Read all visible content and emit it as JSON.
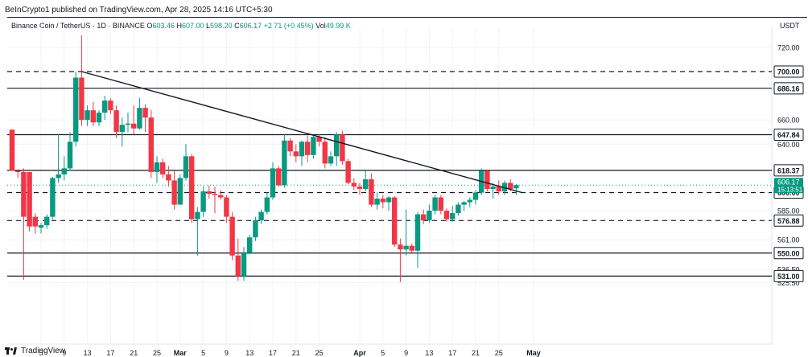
{
  "publisher_line": "BeInCrypto1 published on TradingView.com, Apr 28, 2025 14:16 UTC+5:30",
  "legend": {
    "symbol": "Binance Coin / TetherUS · 1D · BINANCE",
    "open_label": "O",
    "open": "603.46",
    "high_label": "H",
    "high": "607.00",
    "low_label": "L",
    "low": "598.20",
    "close_label": "C",
    "close": "606.17",
    "change": "+2.71 (+0.45%)",
    "volume_label": "Vol",
    "volume": "49.99 K"
  },
  "currency": "USDT",
  "brand": "TradingView",
  "colors": {
    "up": "#089981",
    "down": "#f23645",
    "line": "#131722",
    "grid": "#f0f3fa"
  },
  "chart_data": {
    "type": "candlestick",
    "title": "Binance Coin / TetherUS · 1D · BINANCE",
    "ylim": [
      520,
      735
    ],
    "y_ticks": [
      "720.00",
      "700.00",
      "686.16",
      "660.00",
      "647.84",
      "640.00",
      "618.37",
      "606.17",
      "600.00",
      "585.00",
      "576.88",
      "561.00",
      "550.00",
      "536.50",
      "531.00",
      "525.50"
    ],
    "x_ticks": [
      "5",
      "9",
      "13",
      "17",
      "21",
      "25",
      "Mar",
      "5",
      "9",
      "13",
      "17",
      "21",
      "25",
      "Apr",
      "5",
      "9",
      "13",
      "17",
      "21",
      "25",
      "May"
    ],
    "last_price": {
      "value": 606.17,
      "label": "606.17",
      "countdown": "15:13:51"
    },
    "horizontal_levels": [
      {
        "value": 700.0,
        "label": "700.00",
        "style": "dashed"
      },
      {
        "value": 686.16,
        "label": "686.16",
        "style": "solid"
      },
      {
        "value": 647.84,
        "label": "647.84",
        "style": "solid"
      },
      {
        "value": 618.37,
        "label": "618.37",
        "style": "solid"
      },
      {
        "value": 600.0,
        "label": "600.00",
        "style": "dashed"
      },
      {
        "value": 576.88,
        "label": "576.88",
        "style": "dashed"
      },
      {
        "value": 550.0,
        "label": "550.00",
        "style": "solid"
      },
      {
        "value": 531.0,
        "label": "531.00",
        "style": "solid"
      }
    ],
    "trendline": {
      "from": {
        "date": "Feb 12",
        "value": 700
      },
      "to": {
        "date": "Apr 29",
        "value": 600
      }
    },
    "candles": [
      {
        "date": "Jan 31",
        "open": 652,
        "high": 652,
        "low": 618,
        "close": 618
      },
      {
        "date": "Feb 1",
        "open": 618,
        "high": 618,
        "low": 612,
        "close": 617
      },
      {
        "date": "Feb 2",
        "open": 617,
        "high": 620,
        "low": 528,
        "close": 580
      },
      {
        "date": "Feb 3",
        "open": 617,
        "high": 617,
        "low": 568,
        "close": 572
      },
      {
        "date": "Feb 4",
        "open": 580,
        "high": 583,
        "low": 566,
        "close": 572
      },
      {
        "date": "Feb 5",
        "open": 571,
        "high": 575,
        "low": 566,
        "close": 573
      },
      {
        "date": "Feb 6",
        "open": 573,
        "high": 582,
        "low": 570,
        "close": 580
      },
      {
        "date": "Feb 7",
        "open": 580,
        "high": 613,
        "low": 578,
        "close": 612
      },
      {
        "date": "Feb 8",
        "open": 612,
        "high": 648,
        "low": 608,
        "close": 615
      },
      {
        "date": "Feb 9",
        "open": 615,
        "high": 630,
        "low": 610,
        "close": 620
      },
      {
        "date": "Feb 10",
        "open": 620,
        "high": 650,
        "low": 618,
        "close": 642
      },
      {
        "date": "Feb 11",
        "open": 642,
        "high": 700,
        "low": 638,
        "close": 695
      },
      {
        "date": "Feb 12",
        "open": 695,
        "high": 730,
        "low": 655,
        "close": 660
      },
      {
        "date": "Feb 13",
        "open": 660,
        "high": 672,
        "low": 655,
        "close": 668
      },
      {
        "date": "Feb 14",
        "open": 668,
        "high": 675,
        "low": 655,
        "close": 658
      },
      {
        "date": "Feb 15",
        "open": 658,
        "high": 668,
        "low": 655,
        "close": 666
      },
      {
        "date": "Feb 16",
        "open": 666,
        "high": 680,
        "low": 660,
        "close": 676
      },
      {
        "date": "Feb 17",
        "open": 676,
        "high": 678,
        "low": 665,
        "close": 668
      },
      {
        "date": "Feb 18",
        "open": 668,
        "high": 672,
        "low": 645,
        "close": 650
      },
      {
        "date": "Feb 19",
        "open": 650,
        "high": 662,
        "low": 638,
        "close": 656
      },
      {
        "date": "Feb 20",
        "open": 656,
        "high": 666,
        "low": 650,
        "close": 657
      },
      {
        "date": "Feb 21",
        "open": 657,
        "high": 672,
        "low": 648,
        "close": 653
      },
      {
        "date": "Feb 22",
        "open": 653,
        "high": 678,
        "low": 652,
        "close": 670
      },
      {
        "date": "Feb 23",
        "open": 670,
        "high": 673,
        "low": 650,
        "close": 662
      },
      {
        "date": "Feb 24",
        "open": 662,
        "high": 668,
        "low": 612,
        "close": 617
      },
      {
        "date": "Feb 25",
        "open": 617,
        "high": 630,
        "low": 608,
        "close": 625
      },
      {
        "date": "Feb 26",
        "open": 625,
        "high": 628,
        "low": 612,
        "close": 615
      },
      {
        "date": "Feb 27",
        "open": 615,
        "high": 622,
        "low": 605,
        "close": 610
      },
      {
        "date": "Feb 28",
        "open": 610,
        "high": 618,
        "low": 586,
        "close": 590
      },
      {
        "date": "Mar 1",
        "open": 590,
        "high": 615,
        "low": 590,
        "close": 612
      },
      {
        "date": "Mar 2",
        "open": 612,
        "high": 640,
        "low": 610,
        "close": 630
      },
      {
        "date": "Mar 3",
        "open": 630,
        "high": 632,
        "low": 575,
        "close": 578
      },
      {
        "date": "Mar 4",
        "open": 578,
        "high": 588,
        "low": 548,
        "close": 584
      },
      {
        "date": "Mar 5",
        "open": 584,
        "high": 605,
        "low": 580,
        "close": 601
      },
      {
        "date": "Mar 6",
        "open": 601,
        "high": 606,
        "low": 595,
        "close": 599
      },
      {
        "date": "Mar 7",
        "open": 599,
        "high": 605,
        "low": 583,
        "close": 598
      },
      {
        "date": "Mar 8",
        "open": 598,
        "high": 602,
        "low": 594,
        "close": 596
      },
      {
        "date": "Mar 9",
        "open": 596,
        "high": 598,
        "low": 575,
        "close": 580
      },
      {
        "date": "Mar 10",
        "open": 580,
        "high": 584,
        "low": 544,
        "close": 548
      },
      {
        "date": "Mar 11",
        "open": 548,
        "high": 562,
        "low": 527,
        "close": 531
      },
      {
        "date": "Mar 12",
        "open": 531,
        "high": 555,
        "low": 527,
        "close": 550
      },
      {
        "date": "Mar 13",
        "open": 550,
        "high": 565,
        "low": 549,
        "close": 563
      },
      {
        "date": "Mar 14",
        "open": 563,
        "high": 580,
        "low": 560,
        "close": 577
      },
      {
        "date": "Mar 15",
        "open": 577,
        "high": 586,
        "low": 574,
        "close": 584
      },
      {
        "date": "Mar 16",
        "open": 584,
        "high": 600,
        "low": 582,
        "close": 596
      },
      {
        "date": "Mar 17",
        "open": 596,
        "high": 625,
        "low": 594,
        "close": 620
      },
      {
        "date": "Mar 18",
        "open": 620,
        "high": 622,
        "low": 605,
        "close": 606
      },
      {
        "date": "Mar 19",
        "open": 606,
        "high": 648,
        "low": 604,
        "close": 643
      },
      {
        "date": "Mar 20",
        "open": 643,
        "high": 645,
        "low": 630,
        "close": 634
      },
      {
        "date": "Mar 21",
        "open": 634,
        "high": 640,
        "low": 625,
        "close": 630
      },
      {
        "date": "Mar 22",
        "open": 630,
        "high": 643,
        "low": 622,
        "close": 642
      },
      {
        "date": "Mar 23",
        "open": 642,
        "high": 647,
        "low": 625,
        "close": 631
      },
      {
        "date": "Mar 24",
        "open": 631,
        "high": 648,
        "low": 628,
        "close": 646
      },
      {
        "date": "Mar 25",
        "open": 646,
        "high": 648,
        "low": 638,
        "close": 642
      },
      {
        "date": "Mar 26",
        "open": 642,
        "high": 646,
        "low": 620,
        "close": 624
      },
      {
        "date": "Mar 27",
        "open": 624,
        "high": 634,
        "low": 622,
        "close": 630
      },
      {
        "date": "Mar 28",
        "open": 630,
        "high": 650,
        "low": 622,
        "close": 648
      },
      {
        "date": "Mar 29",
        "open": 648,
        "high": 651,
        "low": 623,
        "close": 626
      },
      {
        "date": "Mar 30",
        "open": 626,
        "high": 628,
        "low": 607,
        "close": 608
      },
      {
        "date": "Mar 31",
        "open": 608,
        "high": 612,
        "low": 602,
        "close": 605
      },
      {
        "date": "Apr 1",
        "open": 605,
        "high": 608,
        "low": 598,
        "close": 603
      },
      {
        "date": "Apr 2",
        "open": 603,
        "high": 618,
        "low": 601,
        "close": 611
      },
      {
        "date": "Apr 3",
        "open": 611,
        "high": 616,
        "low": 588,
        "close": 590
      },
      {
        "date": "Apr 4",
        "open": 590,
        "high": 600,
        "low": 586,
        "close": 595
      },
      {
        "date": "Apr 5",
        "open": 595,
        "high": 598,
        "low": 587,
        "close": 592
      },
      {
        "date": "Apr 6",
        "open": 592,
        "high": 597,
        "low": 585,
        "close": 596
      },
      {
        "date": "Apr 7",
        "open": 596,
        "high": 597,
        "low": 555,
        "close": 557
      },
      {
        "date": "Apr 8",
        "open": 557,
        "high": 562,
        "low": 526,
        "close": 553
      },
      {
        "date": "Apr 9",
        "open": 553,
        "high": 586,
        "low": 548,
        "close": 556
      },
      {
        "date": "Apr 10",
        "open": 556,
        "high": 558,
        "low": 550,
        "close": 552
      },
      {
        "date": "Apr 11",
        "open": 552,
        "high": 584,
        "low": 538,
        "close": 582
      },
      {
        "date": "Apr 12",
        "open": 582,
        "high": 586,
        "low": 574,
        "close": 577
      },
      {
        "date": "Apr 13",
        "open": 577,
        "high": 590,
        "low": 575,
        "close": 585
      },
      {
        "date": "Apr 14",
        "open": 585,
        "high": 598,
        "low": 582,
        "close": 596
      },
      {
        "date": "Apr 15",
        "open": 596,
        "high": 598,
        "low": 582,
        "close": 585
      },
      {
        "date": "Apr 16",
        "open": 585,
        "high": 587,
        "low": 576,
        "close": 578
      },
      {
        "date": "Apr 17",
        "open": 578,
        "high": 589,
        "low": 576,
        "close": 583
      },
      {
        "date": "Apr 18",
        "open": 583,
        "high": 592,
        "low": 581,
        "close": 590
      },
      {
        "date": "Apr 19",
        "open": 590,
        "high": 593,
        "low": 585,
        "close": 592
      },
      {
        "date": "Apr 20",
        "open": 592,
        "high": 596,
        "low": 588,
        "close": 594
      },
      {
        "date": "Apr 21",
        "open": 594,
        "high": 602,
        "low": 590,
        "close": 600
      },
      {
        "date": "Apr 22",
        "open": 600,
        "high": 620,
        "low": 598,
        "close": 618
      },
      {
        "date": "Apr 23",
        "open": 618,
        "high": 619,
        "low": 601,
        "close": 603
      },
      {
        "date": "Apr 24",
        "open": 603,
        "high": 608,
        "low": 595,
        "close": 605
      },
      {
        "date": "Apr 25",
        "open": 605,
        "high": 610,
        "low": 598,
        "close": 601
      },
      {
        "date": "Apr 26",
        "open": 601,
        "high": 610,
        "low": 598,
        "close": 608
      },
      {
        "date": "Apr 27",
        "open": 608,
        "high": 611,
        "low": 601,
        "close": 603
      },
      {
        "date": "Apr 28",
        "open": 603.46,
        "high": 607.0,
        "low": 598.2,
        "close": 606.17
      }
    ]
  }
}
